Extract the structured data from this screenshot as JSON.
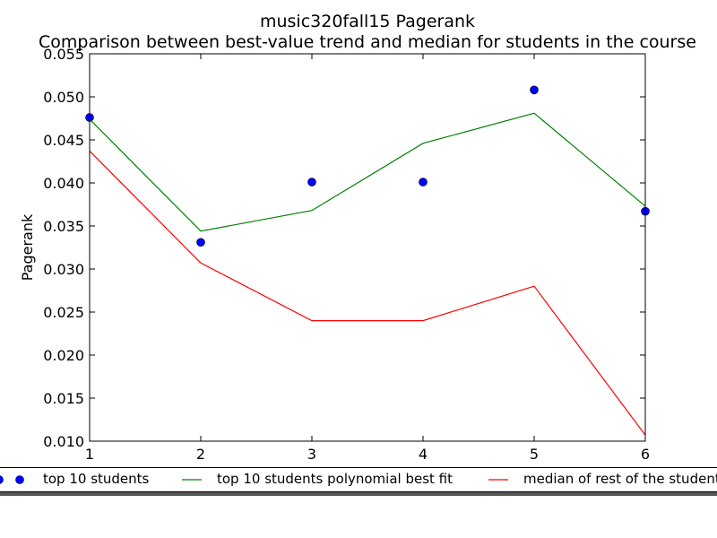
{
  "chart_data": {
    "type": "line",
    "title": "music320fall15 Pagerank",
    "subtitle": "Comparison between best-value trend and median for students in the course",
    "xlabel": "",
    "ylabel": "Pagerank",
    "xlim": [
      1,
      6
    ],
    "ylim": [
      0.01,
      0.055
    ],
    "x_ticks": [
      "1",
      "2",
      "3",
      "4",
      "5",
      "6"
    ],
    "y_ticks": [
      "0.010",
      "0.015",
      "0.020",
      "0.025",
      "0.030",
      "0.035",
      "0.040",
      "0.045",
      "0.050",
      "0.055"
    ],
    "grid": false,
    "legend_position": "bottom",
    "x": [
      1,
      2,
      3,
      4,
      5,
      6
    ],
    "series": [
      {
        "name": "top 10 students",
        "style": "markers",
        "color": "#0000ff",
        "values": [
          0.0476,
          0.0331,
          0.0401,
          0.0401,
          0.0508,
          0.0367
        ]
      },
      {
        "name": "top 10 students polynomial best fit",
        "style": "line",
        "color": "#008000",
        "values": [
          0.0474,
          0.0344,
          0.0368,
          0.0446,
          0.0481,
          0.0373
        ]
      },
      {
        "name": "median of rest of the students",
        "style": "line",
        "color": "#ff0000",
        "values": [
          0.0437,
          0.0307,
          0.024,
          0.024,
          0.028,
          0.0107
        ]
      }
    ]
  }
}
